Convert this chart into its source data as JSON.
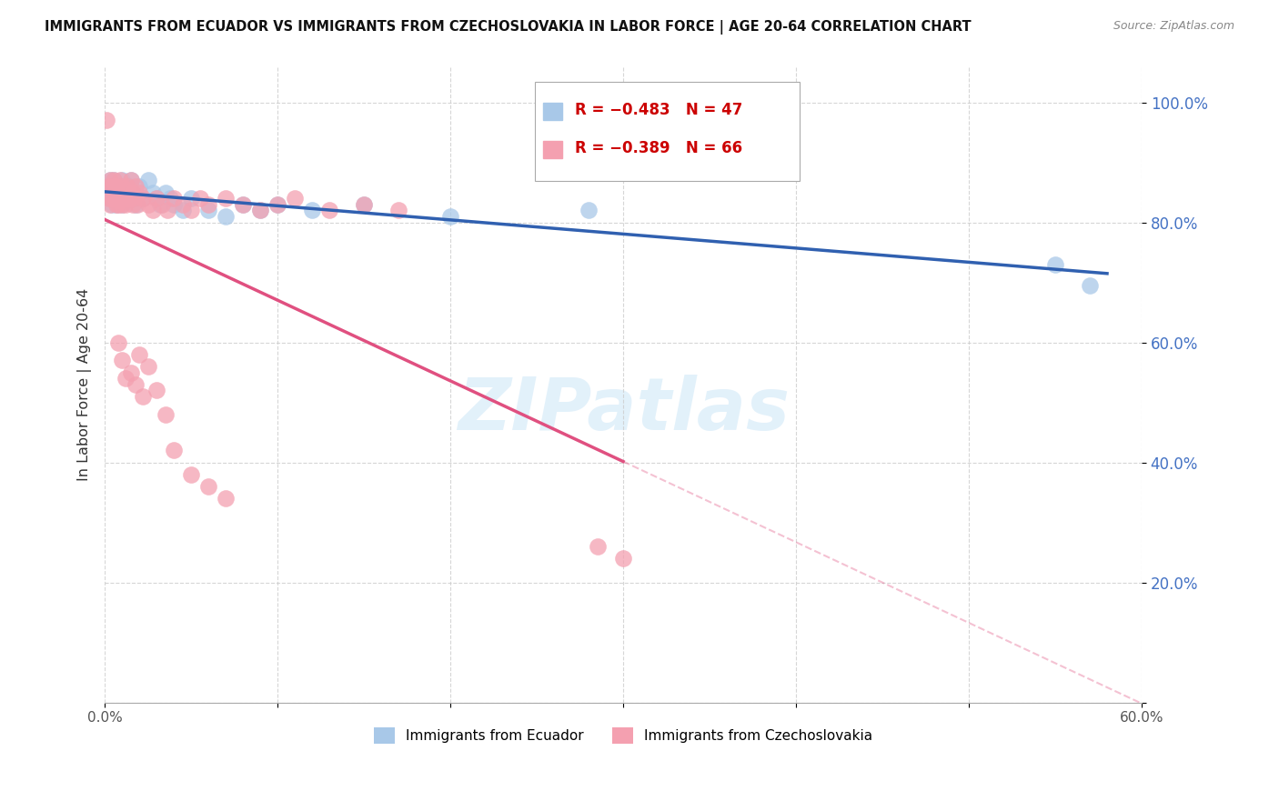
{
  "title": "IMMIGRANTS FROM ECUADOR VS IMMIGRANTS FROM CZECHOSLOVAKIA IN LABOR FORCE | AGE 20-64 CORRELATION CHART",
  "source": "Source: ZipAtlas.com",
  "ylabel": "In Labor Force | Age 20-64",
  "xlim": [
    0.0,
    0.6
  ],
  "ylim": [
    0.0,
    1.06
  ],
  "yticks": [
    0.0,
    0.2,
    0.4,
    0.6,
    0.8,
    1.0
  ],
  "ytick_labels": [
    "",
    "20.0%",
    "40.0%",
    "60.0%",
    "80.0%",
    "100.0%"
  ],
  "xticks": [
    0.0,
    0.1,
    0.2,
    0.3,
    0.4,
    0.5,
    0.6
  ],
  "xtick_labels": [
    "0.0%",
    "",
    "",
    "",
    "",
    "",
    "60.0%"
  ],
  "legend_blue_r": "R = −0.483",
  "legend_blue_n": "N = 47",
  "legend_pink_r": "R = −0.389",
  "legend_pink_n": "N = 66",
  "blue_scatter_color": "#a8c8e8",
  "pink_scatter_color": "#f4a0b0",
  "blue_line_color": "#3060b0",
  "pink_line_color": "#e05080",
  "watermark_color": "#d0e8f8",
  "ecuador_x": [
    0.001,
    0.002,
    0.003,
    0.003,
    0.004,
    0.004,
    0.005,
    0.005,
    0.006,
    0.006,
    0.007,
    0.007,
    0.008,
    0.008,
    0.009,
    0.01,
    0.01,
    0.011,
    0.012,
    0.013,
    0.014,
    0.015,
    0.016,
    0.017,
    0.018,
    0.02,
    0.022,
    0.025,
    0.028,
    0.03,
    0.032,
    0.035,
    0.038,
    0.04,
    0.045,
    0.05,
    0.06,
    0.07,
    0.08,
    0.09,
    0.1,
    0.12,
    0.15,
    0.2,
    0.28,
    0.55,
    0.57
  ],
  "ecuador_y": [
    0.86,
    0.85,
    0.87,
    0.84,
    0.86,
    0.83,
    0.87,
    0.84,
    0.85,
    0.86,
    0.84,
    0.83,
    0.86,
    0.85,
    0.84,
    0.87,
    0.83,
    0.86,
    0.85,
    0.84,
    0.86,
    0.87,
    0.85,
    0.84,
    0.83,
    0.86,
    0.84,
    0.87,
    0.85,
    0.84,
    0.83,
    0.85,
    0.84,
    0.83,
    0.82,
    0.84,
    0.82,
    0.81,
    0.83,
    0.82,
    0.83,
    0.82,
    0.83,
    0.81,
    0.82,
    0.73,
    0.695
  ],
  "czech_x": [
    0.001,
    0.002,
    0.002,
    0.003,
    0.003,
    0.004,
    0.004,
    0.005,
    0.005,
    0.006,
    0.006,
    0.007,
    0.007,
    0.008,
    0.008,
    0.009,
    0.009,
    0.01,
    0.01,
    0.011,
    0.011,
    0.012,
    0.013,
    0.014,
    0.015,
    0.016,
    0.016,
    0.017,
    0.018,
    0.019,
    0.02,
    0.022,
    0.025,
    0.028,
    0.03,
    0.033,
    0.036,
    0.04,
    0.045,
    0.05,
    0.055,
    0.06,
    0.07,
    0.08,
    0.09,
    0.1,
    0.11,
    0.13,
    0.15,
    0.17,
    0.02,
    0.025,
    0.03,
    0.035,
    0.015,
    0.018,
    0.022,
    0.012,
    0.01,
    0.008,
    0.04,
    0.05,
    0.06,
    0.07,
    0.3,
    0.285
  ],
  "czech_y": [
    0.97,
    0.86,
    0.84,
    0.87,
    0.83,
    0.86,
    0.84,
    0.87,
    0.85,
    0.84,
    0.86,
    0.83,
    0.85,
    0.84,
    0.83,
    0.87,
    0.84,
    0.86,
    0.83,
    0.85,
    0.84,
    0.83,
    0.86,
    0.84,
    0.87,
    0.85,
    0.83,
    0.84,
    0.86,
    0.83,
    0.85,
    0.84,
    0.83,
    0.82,
    0.84,
    0.83,
    0.82,
    0.84,
    0.83,
    0.82,
    0.84,
    0.83,
    0.84,
    0.83,
    0.82,
    0.83,
    0.84,
    0.82,
    0.83,
    0.82,
    0.58,
    0.56,
    0.52,
    0.48,
    0.55,
    0.53,
    0.51,
    0.54,
    0.57,
    0.6,
    0.42,
    0.38,
    0.36,
    0.34,
    0.24,
    0.26
  ]
}
